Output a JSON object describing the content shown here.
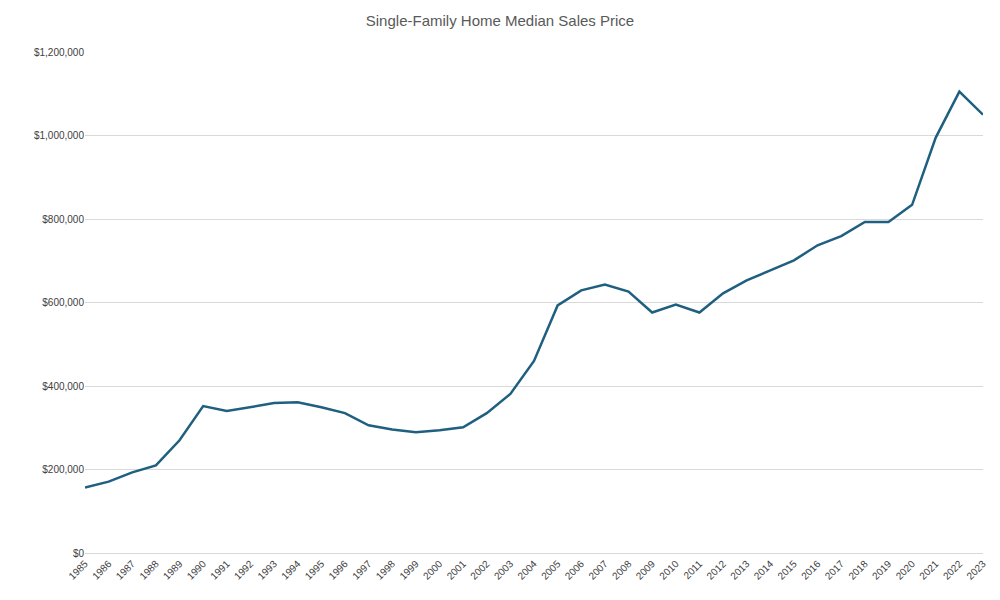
{
  "chart_data": {
    "type": "line",
    "title": "Single-Family Home Median Sales Price",
    "categories": [
      "1985",
      "1986",
      "1987",
      "1988",
      "1989",
      "1990",
      "1991",
      "1992",
      "1993",
      "1994",
      "1995",
      "1996",
      "1997",
      "1998",
      "1999",
      "2000",
      "2001",
      "2002",
      "2003",
      "2004",
      "2005",
      "2006",
      "2007",
      "2008",
      "2009",
      "2010",
      "2011",
      "2012",
      "2013",
      "2014",
      "2015",
      "2016",
      "2017",
      "2018",
      "2019",
      "2020",
      "2021",
      "2022",
      "2023"
    ],
    "values": [
      157000,
      171000,
      193000,
      210000,
      270000,
      352000,
      340000,
      349000,
      359000,
      361000,
      349000,
      335000,
      306000,
      296000,
      289000,
      294000,
      301000,
      335000,
      381000,
      460000,
      593000,
      629000,
      643000,
      626000,
      576000,
      595000,
      576000,
      622000,
      653000,
      677000,
      701000,
      737000,
      759000,
      793000,
      793000,
      834000,
      995000,
      1105000,
      1050000
    ],
    "color": "#1f5f7f",
    "line_style": "solid",
    "ylim": [
      0,
      1200000
    ],
    "yticks": [
      {
        "value": 0,
        "label": "$0"
      },
      {
        "value": 200000,
        "label": "$200,000"
      },
      {
        "value": 400000,
        "label": "$400,000"
      },
      {
        "value": 600000,
        "label": "$600,000"
      },
      {
        "value": 800000,
        "label": "$800,000"
      },
      {
        "value": 1000000,
        "label": "$1,000,000"
      },
      {
        "value": 1200000,
        "label": "$1,200,000"
      }
    ],
    "grid": true
  }
}
